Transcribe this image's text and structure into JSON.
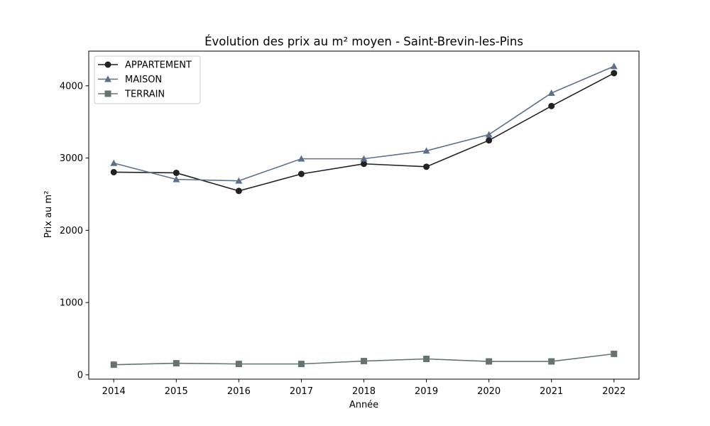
{
  "chart_data": {
    "type": "line",
    "title": "Évolution des prix au m² moyen - Saint-Brevin-les-Pins",
    "xlabel": "Année",
    "ylabel": "Prix au m²",
    "x": [
      2014,
      2015,
      2016,
      2017,
      2018,
      2019,
      2020,
      2021,
      2022
    ],
    "ylim": [
      -60,
      4480
    ],
    "yticks": [
      0,
      1000,
      2000,
      3000,
      4000
    ],
    "grid": false,
    "legend_position": "top-left",
    "series": [
      {
        "name": "APPARTEMENT",
        "marker": "circle",
        "color": "#222222",
        "values": [
          2805,
          2795,
          2545,
          2780,
          2920,
          2880,
          3245,
          3720,
          4175
        ]
      },
      {
        "name": "MAISON",
        "marker": "triangle",
        "color": "#5c7089",
        "values": [
          2930,
          2705,
          2685,
          2990,
          2990,
          3100,
          3325,
          3900,
          4270
        ]
      },
      {
        "name": "TERRAIN",
        "marker": "square",
        "color": "#657472",
        "values": [
          140,
          160,
          150,
          150,
          190,
          220,
          185,
          185,
          290
        ]
      }
    ]
  }
}
